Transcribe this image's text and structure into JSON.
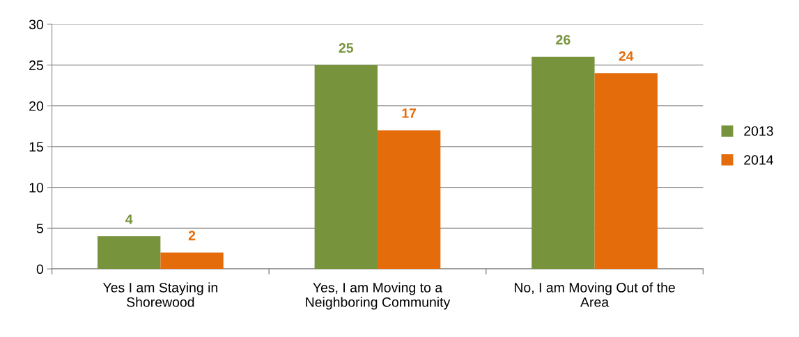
{
  "chart_data": {
    "type": "bar",
    "categories": [
      "Yes I am Staying in\nShorewood",
      "Yes, I am Moving to a\nNeighboring Community",
      "No, I am Moving Out of the\nArea"
    ],
    "series": [
      {
        "name": "2013",
        "color": "#77933c",
        "values": [
          4,
          25,
          26
        ]
      },
      {
        "name": "2014",
        "color": "#e46c0a",
        "values": [
          2,
          17,
          24
        ]
      }
    ],
    "ylim": [
      0,
      30
    ],
    "yticks": [
      0,
      5,
      10,
      15,
      20,
      25,
      30
    ],
    "grid": "y",
    "legend": "right",
    "data_labels": true
  }
}
